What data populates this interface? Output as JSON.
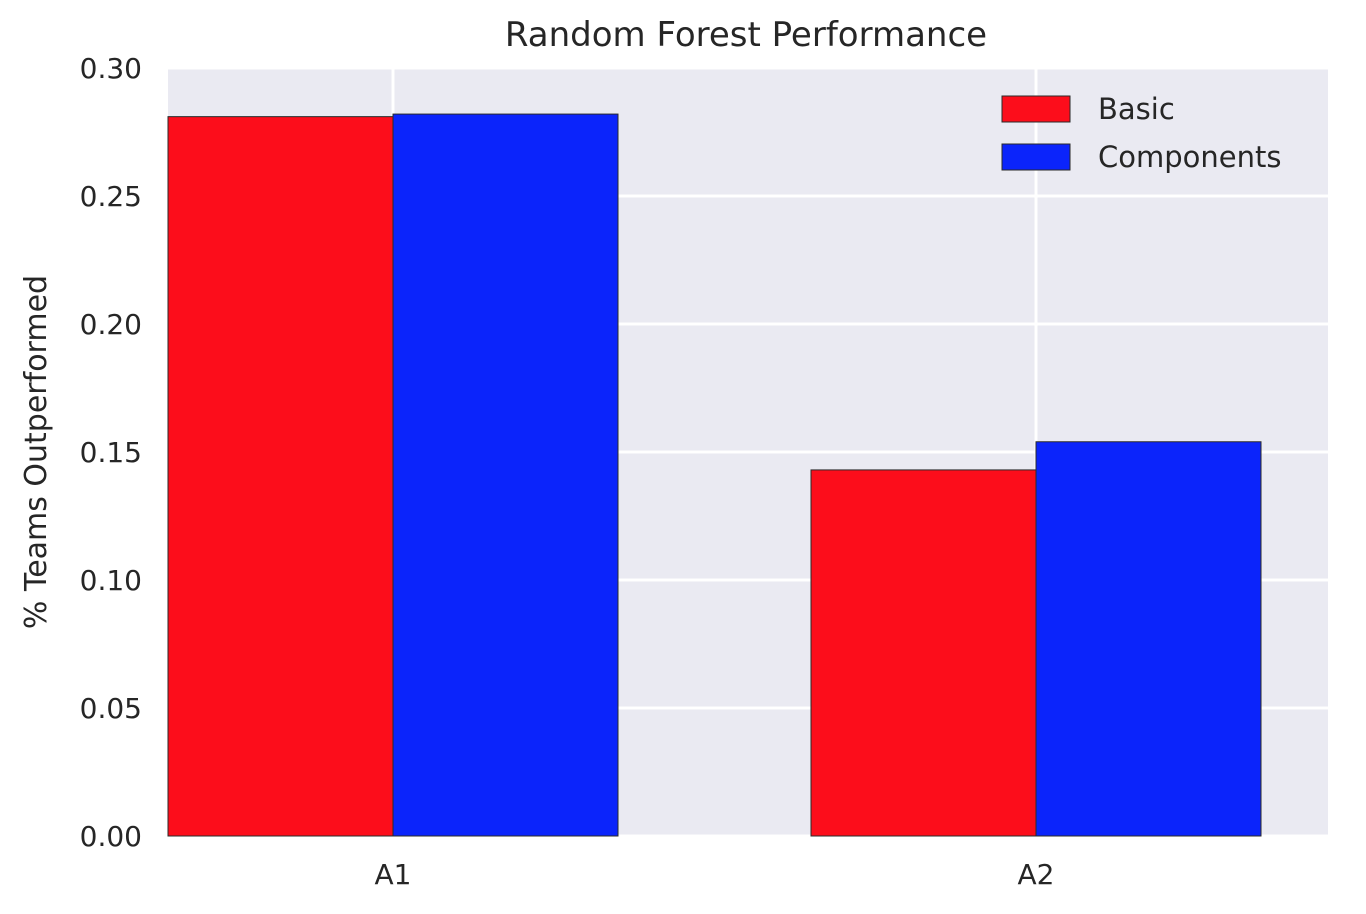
{
  "chart_data": {
    "type": "bar",
    "title": "Random Forest Performance",
    "xlabel": "",
    "ylabel": "% Teams Outperformed",
    "categories": [
      "A1",
      "A2"
    ],
    "series": [
      {
        "name": "Basic",
        "color": "#fc0d1b",
        "values": [
          0.281,
          0.143
        ]
      },
      {
        "name": "Components",
        "color": "#0b24fb",
        "values": [
          0.282,
          0.154
        ]
      }
    ],
    "ylim": [
      0,
      0.3
    ],
    "yticks": [
      "0.00",
      "0.05",
      "0.10",
      "0.15",
      "0.20",
      "0.25",
      "0.30"
    ],
    "grid": true,
    "legend_position": "top-right",
    "background_color": "#eaeaf2",
    "grid_color": "#ffffff"
  }
}
